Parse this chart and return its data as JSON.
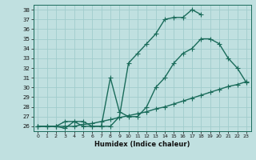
{
  "xlabel": "Humidex (Indice chaleur)",
  "bg_color": "#c0e0e0",
  "grid_color": "#a0cccc",
  "line_color": "#1a6b5a",
  "xlim": [
    -0.5,
    23.5
  ],
  "ylim": [
    25.5,
    38.5
  ],
  "xticks": [
    0,
    1,
    2,
    3,
    4,
    5,
    6,
    7,
    8,
    9,
    10,
    11,
    12,
    13,
    14,
    15,
    16,
    17,
    18,
    19,
    20,
    21,
    22,
    23
  ],
  "yticks": [
    26,
    27,
    28,
    29,
    30,
    31,
    32,
    33,
    34,
    35,
    36,
    37,
    38
  ],
  "line1_x": [
    0,
    1,
    2,
    3,
    4,
    5,
    6,
    7,
    8,
    9,
    10,
    11,
    12,
    13,
    14,
    15,
    16,
    17,
    18,
    19,
    20,
    21,
    22,
    23
  ],
  "line1_y": [
    26,
    26,
    26,
    26.5,
    26.5,
    26,
    26,
    26,
    26,
    27,
    32.5,
    33.5,
    34.5,
    35.5,
    37,
    37.2,
    37.2,
    38,
    37.5,
    null,
    null,
    null,
    null,
    null
  ],
  "line2_x": [
    0,
    1,
    2,
    3,
    4,
    5,
    6,
    7,
    8,
    9,
    10,
    11,
    12,
    13,
    14,
    15,
    16,
    17,
    18,
    19,
    20,
    21,
    22,
    23
  ],
  "line2_y": [
    26,
    26,
    26,
    25.8,
    26.5,
    26.5,
    26,
    26,
    31,
    27.5,
    27,
    27,
    28,
    30,
    31,
    32.5,
    33.5,
    34,
    35,
    35,
    34.5,
    33,
    32,
    30.5
  ],
  "line3_x": [
    0,
    1,
    2,
    3,
    4,
    5,
    6,
    7,
    8,
    9,
    10,
    11,
    12,
    13,
    14,
    15,
    16,
    17,
    18,
    19,
    20,
    21,
    22,
    23
  ],
  "line3_y": [
    26,
    26,
    26,
    26,
    26,
    26.2,
    26.3,
    26.5,
    26.7,
    26.9,
    27.1,
    27.3,
    27.5,
    27.8,
    28.0,
    28.3,
    28.6,
    28.9,
    29.2,
    29.5,
    29.8,
    30.1,
    30.3,
    30.6
  ],
  "marker": "+",
  "markersize": 4,
  "linewidth": 1.0
}
